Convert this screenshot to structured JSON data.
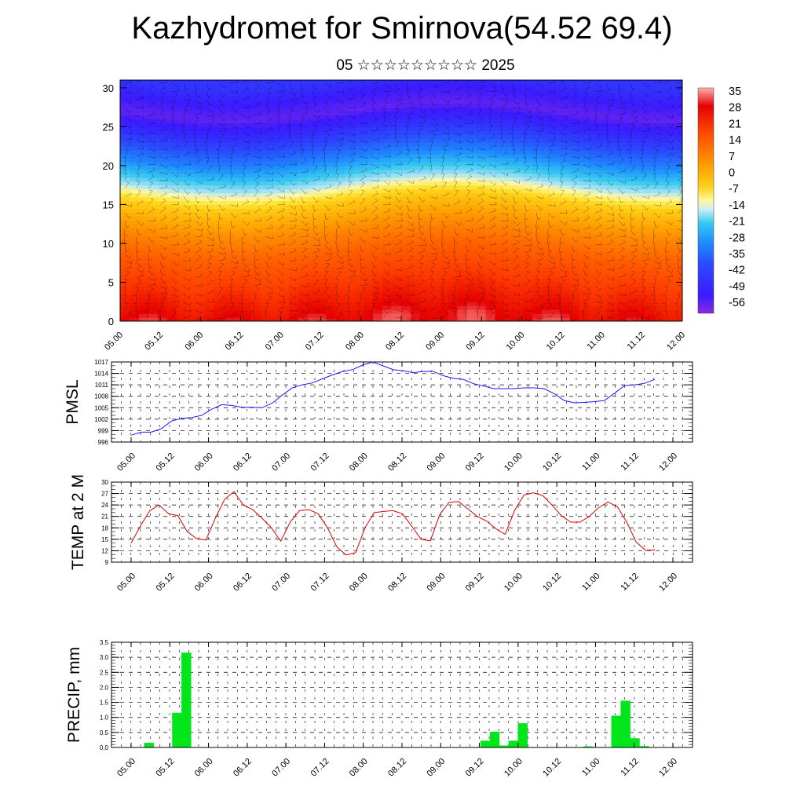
{
  "page": {
    "title": "Kazhydromet for Smirnova(54.52 69.4)",
    "subtitle": "05 ☆☆☆☆☆☆☆☆☆ 2025"
  },
  "colors": {
    "pmsl_line": "#1a1aff",
    "temp_line": "#e00000",
    "precip_bar": "#00e61a",
    "wind_barb": "#000000"
  },
  "chart_data": [
    {
      "type": "heatmap",
      "name": "cross-section temperature and wind",
      "x_ticks": [
        "05.00",
        "05.12",
        "06.00",
        "06.12",
        "07.00",
        "07.12",
        "08.00",
        "08.12",
        "09.00",
        "09.12",
        "10.00",
        "10.12",
        "11.00",
        "11.12",
        "12.00"
      ],
      "y_ticks": [
        "0",
        "5",
        "10",
        "15",
        "20",
        "25",
        "30"
      ],
      "ylim": [
        0,
        31
      ],
      "colorbar_labels": [
        "35",
        "28",
        "21",
        "14",
        "7",
        "0",
        "-7",
        "-14",
        "-21",
        "-28",
        "-35",
        "-42",
        "-49",
        "-56"
      ],
      "colorbar_range": [
        -60,
        38
      ],
      "temperature_profile": {
        "heights": [
          0,
          3,
          6,
          9,
          12,
          14,
          15.5,
          17,
          19,
          21,
          23,
          25,
          27,
          29,
          31
        ],
        "values": [
          33,
          28,
          23,
          18,
          11,
          5,
          0,
          -12,
          -28,
          -40,
          -48,
          -54,
          -58,
          -56,
          -52
        ]
      },
      "wind_barbs": true
    },
    {
      "type": "line",
      "ylabel": "PMSL",
      "x_ticks": [
        "05.00",
        "05.12",
        "06.00",
        "06.12",
        "07.00",
        "07.12",
        "08.00",
        "08.12",
        "09.00",
        "09.12",
        "10.00",
        "10.12",
        "11.00",
        "11.12",
        "12.00"
      ],
      "y_ticks": [
        "1017",
        "1014",
        "1011",
        "1008",
        "1005",
        "1002",
        "999",
        "996"
      ],
      "ylim": [
        996,
        1017
      ],
      "grid": true,
      "series": [
        {
          "values": [
            997.8,
            998.6,
            998.6,
            999.5,
            1001.5,
            1002.2,
            1002.4,
            1003.0,
            1004.6,
            1005.8,
            1005.6,
            1005.1,
            1005.1,
            1005.0,
            1006.2,
            1008.3,
            1010.2,
            1011.0,
            1011.5,
            1012.6,
            1013.6,
            1014.5,
            1015.0,
            1016.2,
            1017.0,
            1016.0,
            1015.0,
            1014.7,
            1014.2,
            1014.5,
            1014.5,
            1013.4,
            1012.7,
            1012.4,
            1011.3,
            1010.7,
            1010.0,
            1010.0,
            1010.0,
            1010.2,
            1010.2,
            1010.0,
            1008.7,
            1006.9,
            1006.3,
            1006.4,
            1006.6,
            1006.9,
            1008.8,
            1010.8,
            1011.0,
            1011.4,
            1012.4
          ]
        }
      ]
    },
    {
      "type": "line",
      "ylabel": "TEMP at 2 M",
      "x_ticks": [
        "05.00",
        "05.12",
        "06.00",
        "06.12",
        "07.00",
        "07.12",
        "08.00",
        "08.12",
        "09.00",
        "09.12",
        "10.00",
        "10.12",
        "11.00",
        "11.12",
        "12.00"
      ],
      "y_ticks": [
        "30",
        "27",
        "24",
        "21",
        "18",
        "15",
        "12",
        "9"
      ],
      "ylim": [
        9,
        30
      ],
      "grid": true,
      "series": [
        {
          "values": [
            14.0,
            18.5,
            22.5,
            24.0,
            21.7,
            21.2,
            17.0,
            15.2,
            14.8,
            20.5,
            25.5,
            27.5,
            24.0,
            22.8,
            20.5,
            18.0,
            14.5,
            19.5,
            22.5,
            22.8,
            21.7,
            18.0,
            13.0,
            10.9,
            11.5,
            18.0,
            22.0,
            22.3,
            22.5,
            21.7,
            18.5,
            15.0,
            14.6,
            21.5,
            24.7,
            24.9,
            23.0,
            21.0,
            19.8,
            17.8,
            16.3,
            22.5,
            26.6,
            27.2,
            26.5,
            24.0,
            21.2,
            19.5,
            19.5,
            21.0,
            23.3,
            24.8,
            23.5,
            19.5,
            14.3,
            12.1,
            12.2
          ]
        }
      ]
    },
    {
      "type": "bar",
      "ylabel": "PRECIP, mm",
      "x_ticks": [
        "05.00",
        "05.12",
        "06.00",
        "06.12",
        "07.00",
        "07.12",
        "08.00",
        "08.12",
        "09.00",
        "09.12",
        "10.00",
        "10.12",
        "11.00",
        "11.12",
        "12.00"
      ],
      "y_ticks": [
        "3.5",
        "3.0",
        "2.5",
        "2.0",
        "1.5",
        "1.0",
        "0.5",
        "0.0"
      ],
      "ylim": [
        0,
        3.5
      ],
      "grid": true,
      "bins": 60,
      "values": [
        0,
        0,
        0.15,
        0,
        0,
        1.15,
        3.15,
        0,
        0,
        0,
        0,
        0,
        0,
        0,
        0,
        0,
        0,
        0,
        0,
        0,
        0,
        0,
        0,
        0,
        0,
        0,
        0,
        0,
        0,
        0,
        0,
        0,
        0,
        0,
        0,
        0,
        0,
        0,
        0.22,
        0.52,
        0.06,
        0.22,
        0.8,
        0,
        0,
        0,
        0,
        0,
        0,
        0.03,
        0,
        0,
        1.05,
        1.55,
        0.3,
        0.04,
        0,
        0,
        0,
        0
      ]
    }
  ]
}
